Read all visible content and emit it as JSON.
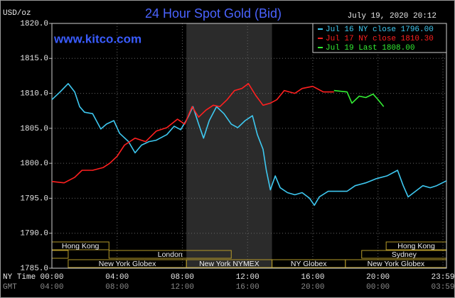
{
  "chart_data": {
    "type": "line",
    "title": "24 Hour Spot Gold (Bid)",
    "timestamp": "July 19, 2020 20:12",
    "watermark": "www.kitco.com",
    "y_unit_label": "USD/oz",
    "x_row_label": "NY Time",
    "x2_row_label": "GMT",
    "xlim": [
      0,
      24.2
    ],
    "ylim": [
      1785,
      1820
    ],
    "yticks": [
      {
        "value": 1785,
        "label": "1785.0"
      },
      {
        "value": 1790,
        "label": "1790.0"
      },
      {
        "value": 1795,
        "label": "1795.0"
      },
      {
        "value": 1800,
        "label": "1800.0"
      },
      {
        "value": 1805,
        "label": "1805.0"
      },
      {
        "value": 1810,
        "label": "1810.0"
      },
      {
        "value": 1815,
        "label": "1815.0"
      },
      {
        "value": 1820,
        "label": "1820.0"
      }
    ],
    "xticks": [
      {
        "value": 0,
        "label": "00:00"
      },
      {
        "value": 4,
        "label": "04:00"
      },
      {
        "value": 8,
        "label": "08:00"
      },
      {
        "value": 12,
        "label": "12:00"
      },
      {
        "value": 16,
        "label": "16:00"
      },
      {
        "value": 20,
        "label": "20:00"
      },
      {
        "value": 23.983,
        "label": "23:59"
      }
    ],
    "x2ticks": [
      {
        "value": 0,
        "label": "04:00"
      },
      {
        "value": 4,
        "label": "08:00"
      },
      {
        "value": 8,
        "label": "12:00"
      },
      {
        "value": 12,
        "label": "16:00"
      },
      {
        "value": 16,
        "label": "20:00"
      },
      {
        "value": 20,
        "label": "00:00"
      },
      {
        "value": 23.983,
        "label": "03:59"
      }
    ],
    "grid": true,
    "background": "#000000",
    "shade_color": "#2b2b2b",
    "session_color": "#b59a2a",
    "sessions": [
      {
        "label": "Hong Kong",
        "start": 0,
        "end": 3.5,
        "row": 0
      },
      {
        "label": "Hong Kong",
        "start": 20.5,
        "end": 24.2,
        "row": 0
      },
      {
        "start": 0,
        "end": 1,
        "row": 1
      },
      {
        "label": "London",
        "start": 3.5,
        "end": 11,
        "row": 1
      },
      {
        "label": "Sydney",
        "start": 19,
        "end": 24.2,
        "row": 1
      },
      {
        "label": "New York Globex",
        "start": 1,
        "end": 8.25,
        "row": 2
      },
      {
        "label": "New York NYMEX",
        "start": 8.25,
        "end": 13.5,
        "row": 2,
        "shaded": true
      },
      {
        "label": "NY Globex",
        "start": 13.5,
        "end": 18,
        "row": 2
      },
      {
        "label": "New York Globex",
        "start": 18,
        "end": 24.2,
        "row": 2
      }
    ],
    "series": [
      {
        "name": "Jul 16 NY close 1796.00",
        "color": "#3ec8f0",
        "x": [
          0,
          0.5,
          1.0,
          1.4,
          1.7,
          2.0,
          2.5,
          3.0,
          3.35,
          3.8,
          4.15,
          4.7,
          5.1,
          5.5,
          5.95,
          6.4,
          7.05,
          7.5,
          7.9,
          8.35,
          8.65,
          9.0,
          9.3,
          9.65,
          10.1,
          10.55,
          11.0,
          11.4,
          11.85,
          12.3,
          12.6,
          12.95,
          13.15,
          13.4,
          13.7,
          14.0,
          14.45,
          14.9,
          15.35,
          15.8,
          16.1,
          16.4,
          16.95,
          18.1,
          18.6,
          19.25,
          19.9,
          20.55,
          21.2,
          21.55,
          21.85,
          22.3,
          22.75,
          23.2,
          23.6,
          24.2
        ],
        "values": [
          1809.1,
          1810.2,
          1811.4,
          1810.2,
          1808.1,
          1807.3,
          1807.1,
          1804.9,
          1805.6,
          1806.1,
          1804.3,
          1803.1,
          1801.5,
          1802.6,
          1803.1,
          1803.3,
          1804.1,
          1805.3,
          1804.8,
          1806.6,
          1808.1,
          1805.6,
          1803.6,
          1806.1,
          1808.1,
          1807.1,
          1805.6,
          1805.1,
          1806.1,
          1806.8,
          1804.1,
          1802.0,
          1799.0,
          1796.2,
          1798.2,
          1796.5,
          1795.8,
          1795.5,
          1795.8,
          1795.0,
          1794.0,
          1795.2,
          1796.0,
          1796.0,
          1796.8,
          1797.2,
          1797.8,
          1798.2,
          1799.0,
          1796.8,
          1795.2,
          1796.0,
          1796.8,
          1796.5,
          1796.8,
          1797.5
        ]
      },
      {
        "name": "Jul 17 NY close 1810.30",
        "color": "#ff2020",
        "x": [
          0,
          0.75,
          1.4,
          1.85,
          2.5,
          3.15,
          3.55,
          4.0,
          4.45,
          5.1,
          5.75,
          6.4,
          7.05,
          7.7,
          8.15,
          8.6,
          9.0,
          9.45,
          9.9,
          10.3,
          10.75,
          11.2,
          11.65,
          12.05,
          12.5,
          12.95,
          13.4,
          13.8,
          14.25,
          14.9,
          15.35,
          16.0,
          16.65,
          17.3
        ],
        "values": [
          1797.4,
          1797.2,
          1798.0,
          1799.0,
          1799.0,
          1799.4,
          1800.0,
          1801.0,
          1802.6,
          1803.6,
          1803.1,
          1804.6,
          1805.1,
          1806.3,
          1805.6,
          1808.1,
          1806.6,
          1807.6,
          1808.3,
          1808.1,
          1809.1,
          1810.4,
          1810.7,
          1811.4,
          1809.7,
          1808.3,
          1808.6,
          1809.1,
          1810.4,
          1810.0,
          1810.7,
          1811.0,
          1810.2,
          1810.2
        ]
      },
      {
        "name": "Jul 19 Last 1808.00",
        "color": "#33ee33",
        "x": [
          17.3,
          18.1,
          18.4,
          18.85,
          19.25,
          19.7,
          20.0,
          20.35
        ],
        "values": [
          1810.4,
          1810.2,
          1808.6,
          1809.6,
          1809.4,
          1809.9,
          1809.1,
          1808.1
        ]
      }
    ]
  }
}
